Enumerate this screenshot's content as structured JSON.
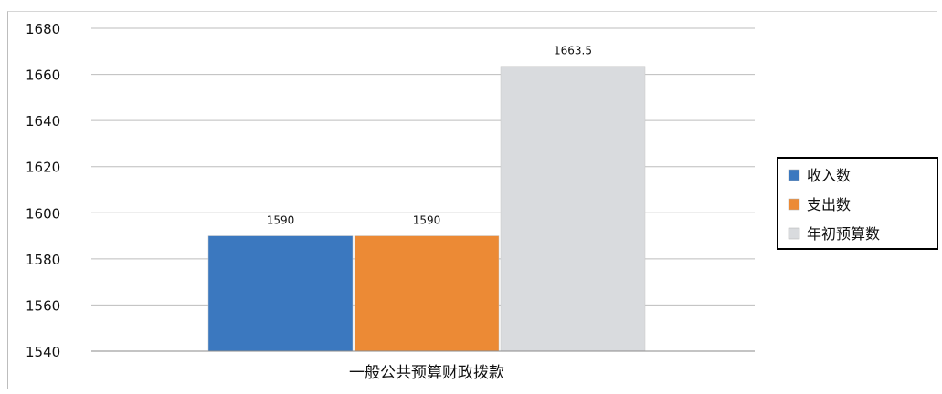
{
  "chart_data": {
    "type": "bar",
    "categories": [
      "一般公共预算财政拨款"
    ],
    "series": [
      {
        "name": "收入数",
        "values": [
          1590
        ],
        "color": "#3b78bf"
      },
      {
        "name": "支出数",
        "values": [
          1590
        ],
        "color": "#ec8a35"
      },
      {
        "name": "年初预算数",
        "values": [
          1663.5
        ],
        "color": "#d9dbde"
      }
    ],
    "data_labels": [
      "1590",
      "1590",
      "1663.5"
    ],
    "y_ticks": [
      "1540",
      "1560",
      "1580",
      "1600",
      "1620",
      "1640",
      "1660",
      "1680"
    ],
    "ylim": [
      1540,
      1680
    ],
    "grid": true,
    "legend_position": "right"
  }
}
